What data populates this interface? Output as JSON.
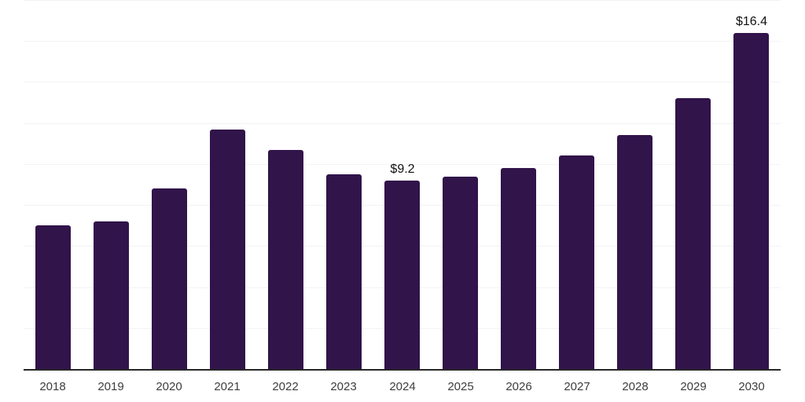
{
  "chart_data": {
    "type": "bar",
    "title": "",
    "xlabel": "",
    "ylabel": "",
    "categories": [
      "2018",
      "2019",
      "2020",
      "2021",
      "2022",
      "2023",
      "2024",
      "2025",
      "2026",
      "2027",
      "2028",
      "2029",
      "2030"
    ],
    "values": [
      7.0,
      7.2,
      8.8,
      11.7,
      10.7,
      9.5,
      9.2,
      9.4,
      9.8,
      10.4,
      11.4,
      13.2,
      16.4
    ],
    "data_labels": [
      "",
      "",
      "",
      "",
      "",
      "",
      "$9.2",
      "",
      "",
      "",
      "",
      "",
      "$16.4"
    ],
    "ylim": [
      0,
      18
    ],
    "gridline_step": 2,
    "grid": true,
    "legend": false,
    "y_tick_labels_visible": false,
    "colors": {
      "bar": "#31144A",
      "gridline": "#f3f3f3",
      "axis": "#262626",
      "tick_label": "#3d3d3d",
      "data_label": "#111111",
      "background": "#ffffff"
    }
  }
}
